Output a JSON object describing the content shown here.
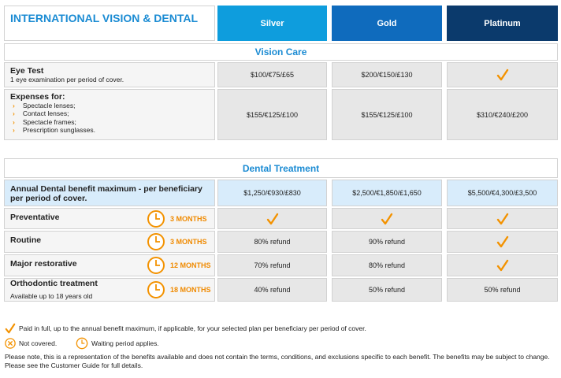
{
  "header": {
    "title": "INTERNATIONAL VISION & DENTAL",
    "plans": [
      "Silver",
      "Gold",
      "Platinum"
    ]
  },
  "vision": {
    "title": "Vision Care",
    "eye_test": {
      "label": "Eye Test",
      "sub": "1 eye examination per period of cover.",
      "values": [
        "$100/€75/£65",
        "$200/€150/£130"
      ]
    },
    "expenses": {
      "label": "Expenses for:",
      "items": [
        "Spectacle lenses;",
        "Contact lenses;",
        "Spectacle frames;",
        "Prescription sunglasses."
      ],
      "values": [
        "$155/€125/£100",
        "$155/€125/£100",
        "$310/€240/£200"
      ]
    }
  },
  "dental": {
    "title": "Dental Treatment",
    "annual": {
      "label": "Annual Dental benefit maximum - per beneficiary per period of cover.",
      "values": [
        "$1,250/€930/£830",
        "$2,500/€1,850/£1,650",
        "$5,500/€4,300/£3,500"
      ]
    },
    "rows": [
      {
        "label": "Preventative",
        "wait": "3 MONTHS",
        "values": []
      },
      {
        "label": "Routine",
        "wait": "3 MONTHS",
        "values": [
          "80% refund",
          "90% refund"
        ]
      },
      {
        "label": "Major restorative",
        "wait": "12 MONTHS",
        "values": [
          "70% refund",
          "80% refund"
        ]
      },
      {
        "label": "Orthodontic treatment",
        "sub": "Available up to 18 years old",
        "wait": "18 MONTHS",
        "values": [
          "40% refund",
          "50% refund",
          "50% refund"
        ]
      }
    ]
  },
  "legend": {
    "paid": "Paid in full, up to the annual benefit maximum, if applicable, for your selected plan per beneficiary per period of cover.",
    "not_covered": "Not covered.",
    "waiting": "Waiting period applies.",
    "note": "Please note, this is a representation of the benefits available and does not contain the terms, conditions, and exclusions specific to each benefit. The benefits may be subject to change.  Please see the Customer Guide for full details."
  }
}
